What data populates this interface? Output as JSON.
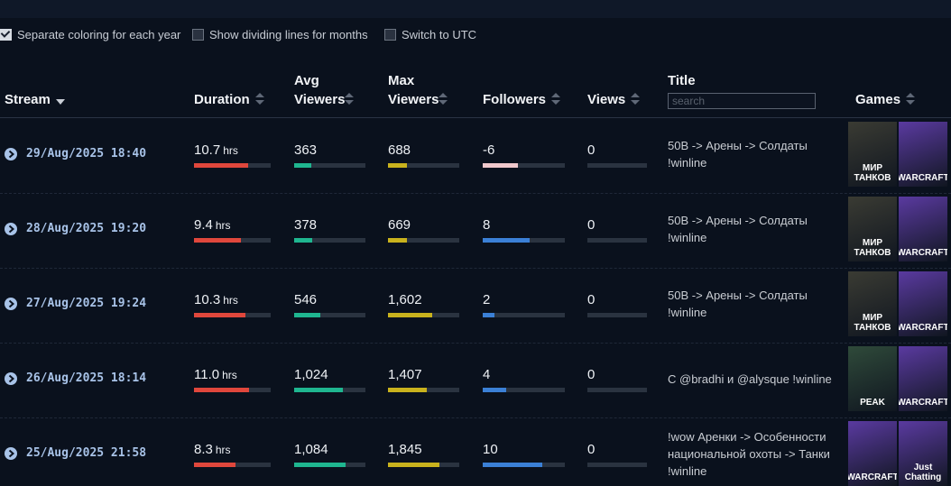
{
  "options": [
    {
      "label": "Separate coloring for each year",
      "checked": true
    },
    {
      "label": "Show dividing lines for months",
      "checked": false
    },
    {
      "label": "Switch to UTC",
      "checked": false
    }
  ],
  "table": {
    "columns": [
      "Stream",
      "Duration",
      "Avg Viewers",
      "Max Viewers",
      "Followers",
      "Views",
      "Title",
      "Games"
    ],
    "search_placeholder": "search",
    "duration_unit": "hrs",
    "rows": [
      [
        "29/Aug/2025 18:40",
        "10.7",
        "363",
        "688",
        "-6",
        "0",
        "50B -> Арены -> Солдаты !winline",
        [
          "МИР ТАНКОВ",
          "WARCRAFT"
        ]
      ],
      [
        "28/Aug/2025 19:20",
        "9.4",
        "378",
        "669",
        "8",
        "0",
        "50B -> Арены -> Солдаты !winline",
        [
          "МИР ТАНКОВ",
          "WARCRAFT"
        ]
      ],
      [
        "27/Aug/2025 19:24",
        "10.3",
        "546",
        "1,602",
        "2",
        "0",
        "50B -> Арены -> Солдаты !winline",
        [
          "МИР ТАНКОВ",
          "WARCRAFT"
        ]
      ],
      [
        "26/Aug/2025 18:14",
        "11.0",
        "1,024",
        "1,407",
        "4",
        "0",
        "С @bradhi и @alysque !winline",
        [
          "PEAK",
          "WARCRAFT"
        ]
      ],
      [
        "25/Aug/2025 21:58",
        "8.3",
        "1,084",
        "1,845",
        "10",
        "0",
        "!wow Аренки -> Особенности национальной охоты -> Танки !winline",
        [
          "WARCRAFT",
          "Just Chatting"
        ]
      ]
    ]
  }
}
